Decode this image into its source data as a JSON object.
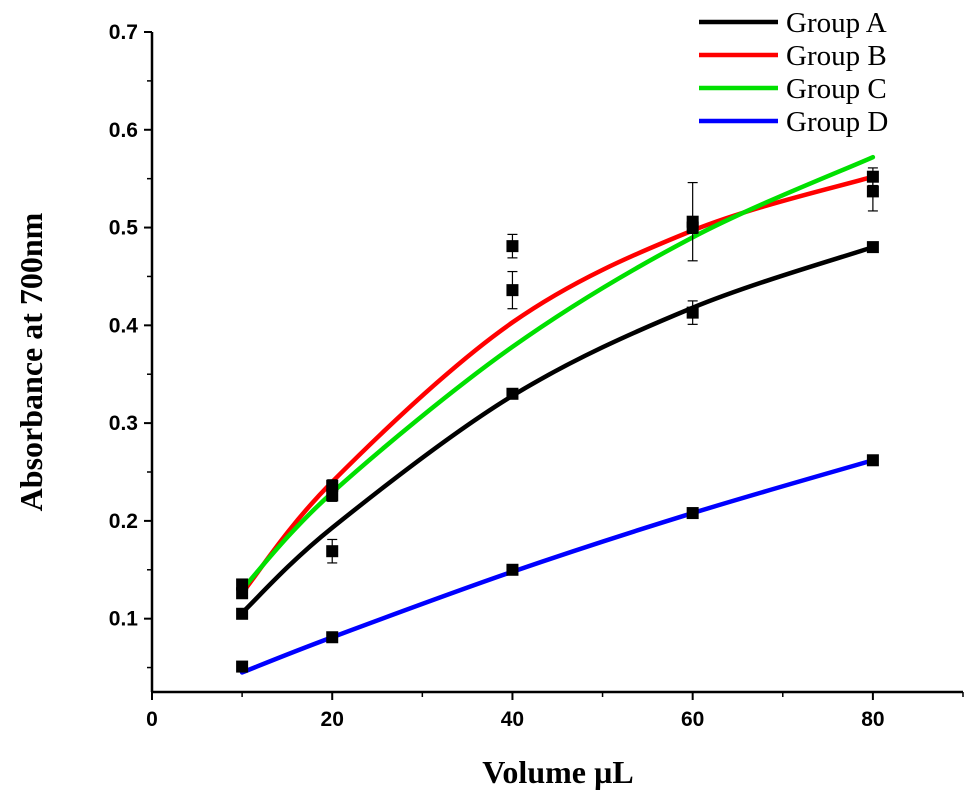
{
  "chart_data": {
    "type": "scatter",
    "title": "",
    "xlabel": "Volume µL",
    "ylabel": "Absorbance at 700nm",
    "xlim": [
      0,
      90
    ],
    "ylim": [
      0.025,
      0.7
    ],
    "xticks": [
      0,
      20,
      40,
      60,
      80
    ],
    "yticks": [
      0.1,
      0.2,
      0.3,
      0.4,
      0.5,
      0.6,
      0.7
    ],
    "xtick_labels": [
      "0",
      "20",
      "40",
      "60",
      "80"
    ],
    "ytick_labels": [
      "0.1",
      "0.2",
      "0.3",
      "0.4",
      "0.5",
      "0.6",
      "0.7"
    ],
    "grid": false,
    "legend_position": "top-right",
    "series": [
      {
        "name": "Group A",
        "color": "#000000",
        "x": [
          10,
          20,
          40,
          60,
          80
        ],
        "y": [
          0.105,
          0.169,
          0.33,
          0.413,
          0.48
        ],
        "err": [
          0.004,
          0.012,
          0.005,
          0.012,
          0.003
        ],
        "fit": [
          0.106,
          0.193,
          0.328,
          0.418,
          0.48
        ]
      },
      {
        "name": "Group B",
        "color": "#ff0000",
        "x": [
          10,
          20,
          40,
          60,
          80
        ],
        "y": [
          0.126,
          0.236,
          0.436,
          0.506,
          0.552
        ],
        "err": [
          0.004,
          0.006,
          0.019,
          0.04,
          0.009
        ],
        "fit": [
          0.126,
          0.24,
          0.403,
          0.497,
          0.552
        ]
      },
      {
        "name": "Group C",
        "color": "#00e000",
        "x": [
          10,
          20,
          40,
          60,
          80
        ],
        "y": [
          0.135,
          0.226,
          0.481,
          0.5,
          0.537
        ],
        "err": [
          0.004,
          0.006,
          0.012,
          0.006,
          0.02
        ],
        "fit": [
          0.13,
          0.229,
          0.378,
          0.49,
          0.572
        ]
      },
      {
        "name": "Group D",
        "color": "#0000ff",
        "x": [
          10,
          20,
          40,
          60,
          80
        ],
        "y": [
          0.051,
          0.081,
          0.15,
          0.208,
          0.262
        ],
        "err": [
          0.002,
          0.003,
          0.003,
          0.003,
          0.004
        ],
        "fit": [
          0.045,
          0.081,
          0.148,
          0.208,
          0.262
        ]
      }
    ]
  }
}
